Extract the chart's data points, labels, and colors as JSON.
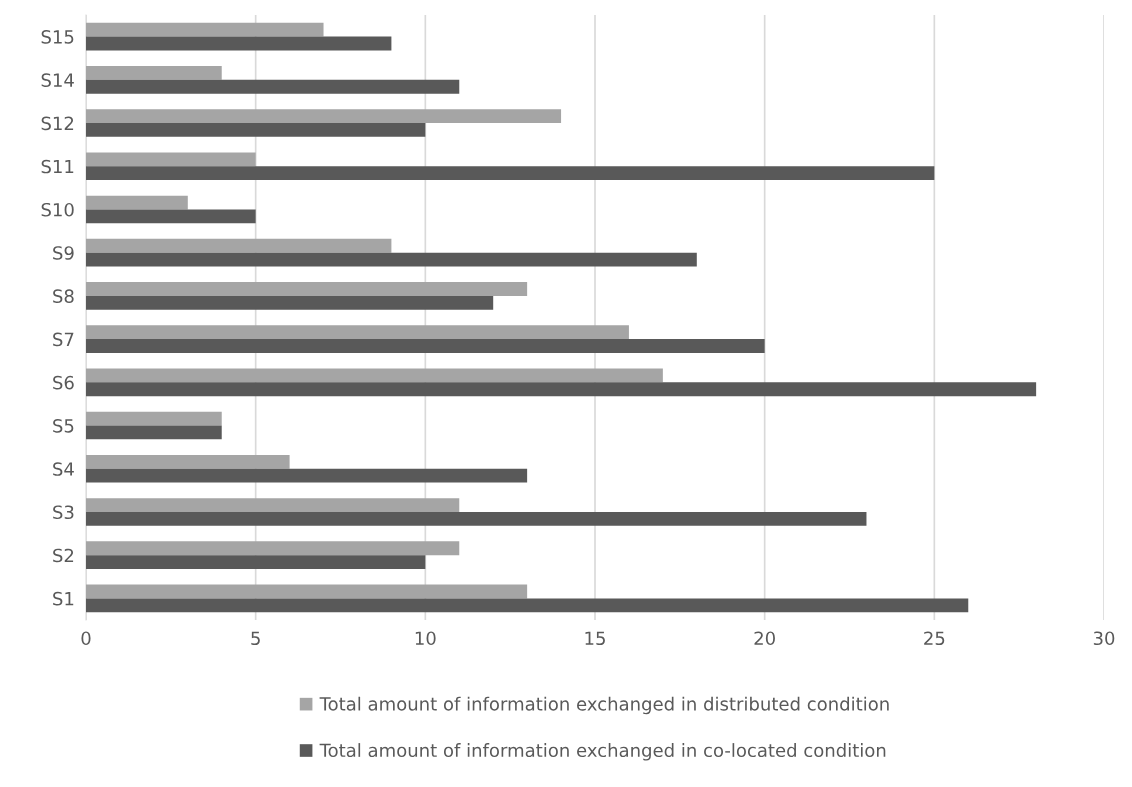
{
  "chart_data": {
    "type": "bar",
    "orientation": "horizontal",
    "categories": [
      "S15",
      "S14",
      "S12",
      "S11",
      "S10",
      "S9",
      "S8",
      "S7",
      "S6",
      "S5",
      "S4",
      "S3",
      "S2",
      "S1"
    ],
    "series": [
      {
        "name": "Total amount of information exchanged in distributed condition",
        "color": "#a5a5a5",
        "values": [
          7,
          4,
          14,
          5,
          3,
          9,
          13,
          16,
          17,
          4,
          6,
          11,
          11,
          13
        ]
      },
      {
        "name": "Total amount of information exchanged in co-located condition",
        "color": "#595959",
        "values": [
          9,
          11,
          10,
          25,
          5,
          18,
          12,
          20,
          28,
          4,
          13,
          23,
          10,
          26
        ]
      }
    ],
    "xlim": [
      0,
      30
    ],
    "xticks": [
      0,
      5,
      10,
      15,
      20,
      25,
      30
    ],
    "grid": "x",
    "legend": "bottom"
  }
}
